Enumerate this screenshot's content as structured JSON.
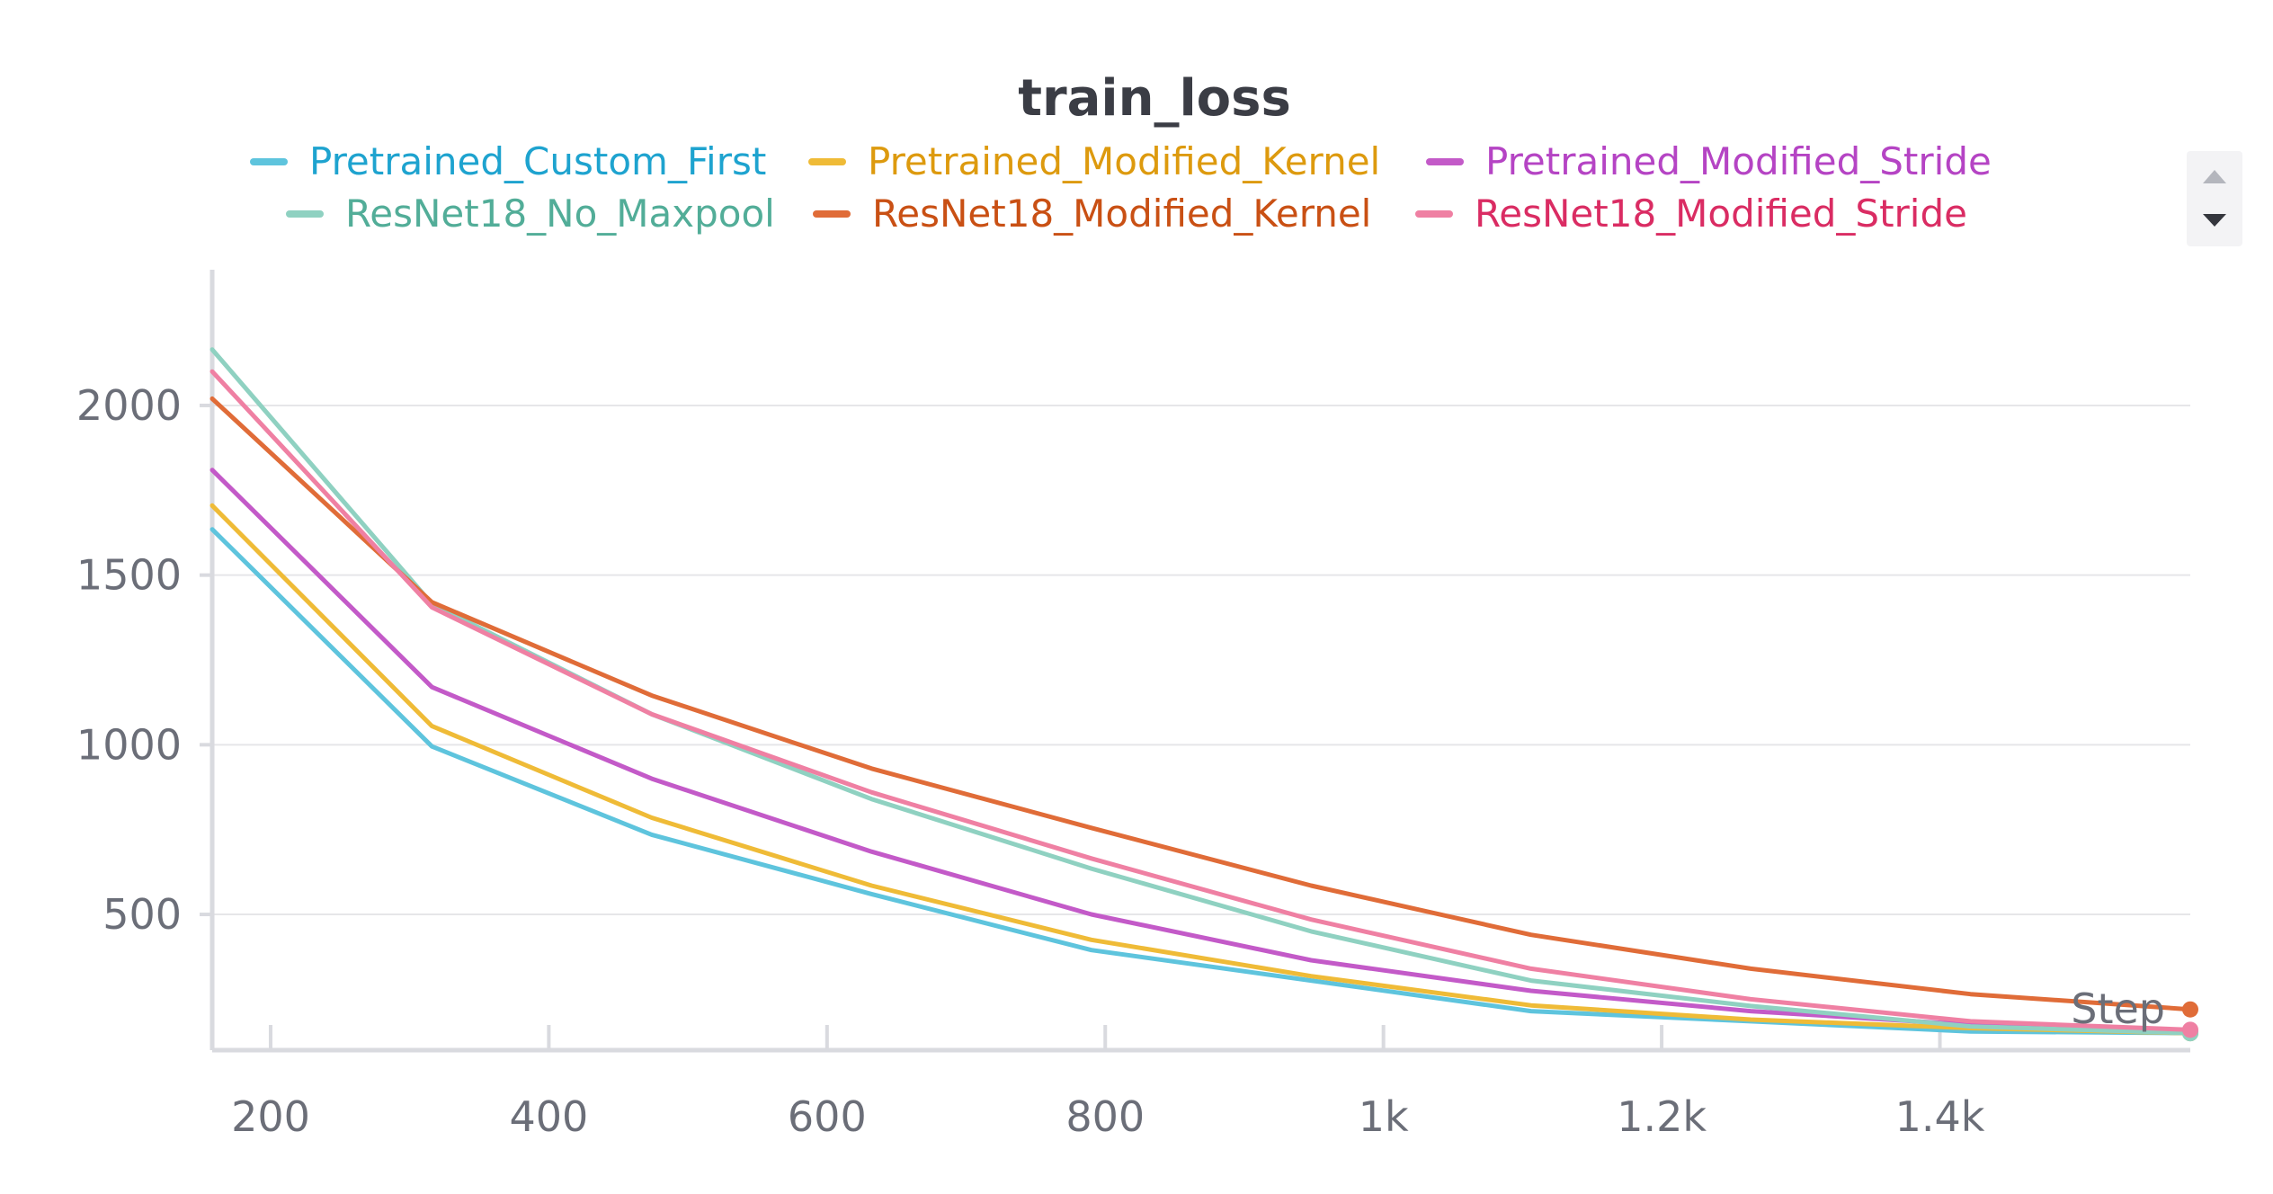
{
  "colors": {
    "grid": "#e6e6e9",
    "axis": "#d9dadf",
    "tick_text": "#6b6e78",
    "title": "#3b3d45",
    "scroll_bg": "#f3f3f5",
    "scroll_up": "#b4b6bd",
    "scroll_down": "#34363d"
  },
  "legend_scroll": {
    "up_icon": "triangle-up-icon",
    "down_icon": "triangle-down-icon"
  },
  "chart_data": {
    "type": "line",
    "title": "train_loss",
    "xlabel": "Step",
    "ylabel": "",
    "xlim": [
      158,
      1580
    ],
    "ylim": [
      100,
      2400
    ],
    "yticks": [
      500,
      1000,
      1500,
      2000
    ],
    "ytick_labels": [
      "500",
      "1000",
      "1500",
      "2000"
    ],
    "xticks": [
      200,
      400,
      600,
      800,
      1000,
      1200,
      1400
    ],
    "xtick_labels": [
      "200",
      "400",
      "600",
      "800",
      "1k",
      "1.2k",
      "1.4k"
    ],
    "grid": true,
    "legend_position": "top",
    "x": [
      158,
      316,
      474,
      632,
      790,
      948,
      1106,
      1264,
      1422,
      1580
    ],
    "series": [
      {
        "name": "Pretrained_Custom_First",
        "line_color": "#5ec4dd",
        "text_color": "#1ea3cf",
        "values": [
          1635,
          995,
          735,
          560,
          395,
          305,
          215,
          185,
          155,
          150
        ]
      },
      {
        "name": "Pretrained_Modified_Kernel",
        "line_color": "#efbb37",
        "text_color": "#dd9a0e",
        "values": [
          1705,
          1055,
          785,
          585,
          425,
          318,
          232,
          190,
          165,
          150
        ]
      },
      {
        "name": "Pretrained_Modified_Stride",
        "line_color": "#c35ac8",
        "text_color": "#b544c4",
        "values": [
          1810,
          1170,
          900,
          685,
          500,
          365,
          275,
          215,
          175,
          155
        ]
      },
      {
        "name": "ResNet18_No_Maxpool",
        "line_color": "#8fd1c1",
        "text_color": "#52ad98",
        "values": [
          2165,
          1415,
          1090,
          840,
          635,
          450,
          305,
          230,
          170,
          150
        ]
      },
      {
        "name": "ResNet18_Modified_Kernel",
        "line_color": "#e06c38",
        "text_color": "#c95014",
        "values": [
          2020,
          1420,
          1145,
          930,
          755,
          585,
          440,
          340,
          265,
          220
        ]
      },
      {
        "name": "ResNet18_Modified_Stride",
        "line_color": "#ef80a3",
        "text_color": "#da2c63",
        "values": [
          2100,
          1405,
          1090,
          860,
          665,
          485,
          340,
          250,
          185,
          160
        ]
      }
    ]
  }
}
